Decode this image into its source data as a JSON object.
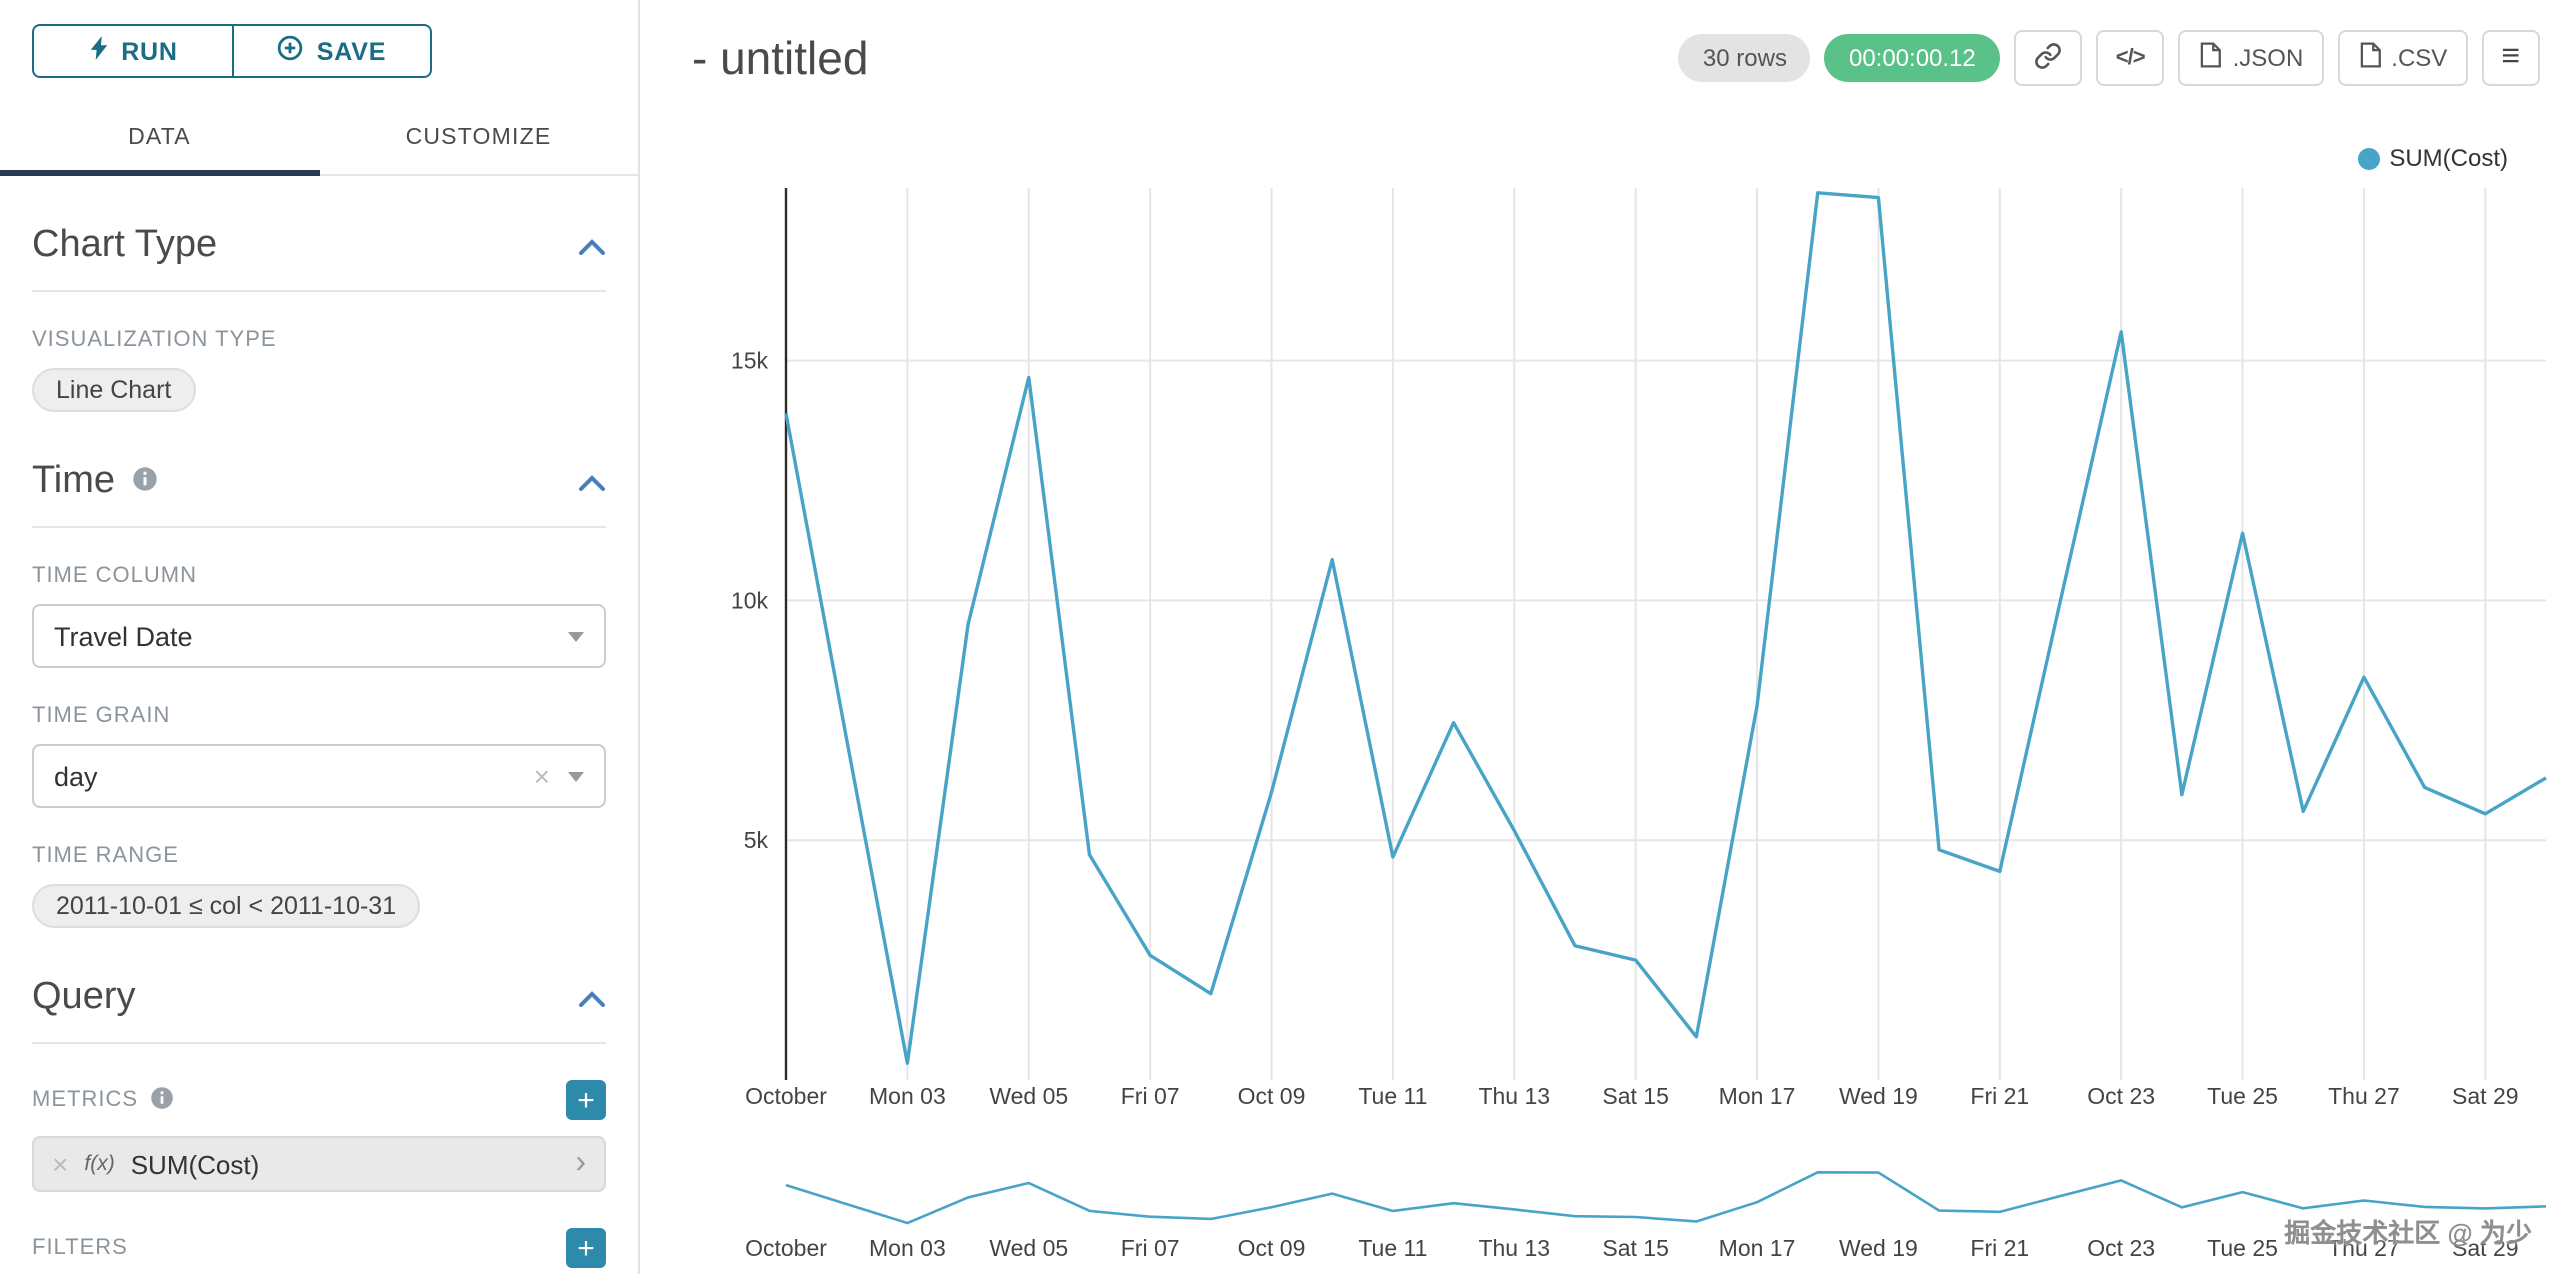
{
  "app": {
    "toolbar": {
      "run_label": "RUN",
      "save_label": "SAVE"
    },
    "tabs": {
      "data": "DATA",
      "customize": "CUSTOMIZE"
    },
    "sections": {
      "chart_type": {
        "title": "Chart Type",
        "viz_type_label": "VISUALIZATION TYPE",
        "viz_type_value": "Line Chart"
      },
      "time": {
        "title": "Time",
        "time_column_label": "TIME COLUMN",
        "time_column_value": "Travel Date",
        "time_grain_label": "TIME GRAIN",
        "time_grain_value": "day",
        "time_range_label": "TIME RANGE",
        "time_range_value": "2011-10-01 ≤ col < 2011-10-31"
      },
      "query": {
        "title": "Query",
        "metrics_label": "METRICS",
        "metric_fx": "f(x)",
        "metric_value": "SUM(Cost)",
        "filters_label": "FILTERS"
      }
    }
  },
  "header": {
    "title": "- untitled",
    "rows_badge": "30 rows",
    "timer_badge": "00:00:00.12",
    "json_label": ".JSON",
    "csv_label": ".CSV"
  },
  "legend": {
    "label": "SUM(Cost)"
  },
  "icons": {
    "clear": "×",
    "chevron_right": "›",
    "code": "</>",
    "menu": "≡"
  },
  "watermark": "掘金技术社区 @ 为少",
  "colors": {
    "line": "#48a4c6",
    "timer_green": "#5ac189",
    "accent": "#2e8aab",
    "run_save": "#1b6d85",
    "tab_underline": "#263b50",
    "chevron": "#4a7dbd",
    "grid": "#e6e6e6",
    "axis": "#2b2b2b"
  },
  "chart_data": {
    "type": "line",
    "title": "",
    "legend_position": "top-right",
    "grid": true,
    "x_unit": "day of October 2011",
    "x_days": 30,
    "series": [
      {
        "name": "SUM(Cost)",
        "values": [
          13900,
          7100,
          350,
          9500,
          14650,
          4700,
          2600,
          1800,
          6000,
          10850,
          4650,
          7450,
          5200,
          2800,
          2500,
          900,
          7800,
          18500,
          18400,
          4800,
          4350,
          10000,
          15600,
          5950,
          11400,
          5600,
          8400,
          6100,
          5550,
          6300
        ]
      }
    ],
    "x_tick_days": [
      1,
      3,
      5,
      7,
      9,
      11,
      13,
      15,
      17,
      19,
      21,
      23,
      25,
      27,
      29
    ],
    "x_tick_labels": [
      "October",
      "Mon 03",
      "Wed 05",
      "Fri 07",
      "Oct 09",
      "Tue 11",
      "Thu 13",
      "Sat 15",
      "Mon 17",
      "Wed 19",
      "Fri 21",
      "Oct 23",
      "Tue 25",
      "Thu 27",
      "Sat 29"
    ],
    "y_ticks": [
      5000,
      10000,
      15000
    ],
    "y_tick_labels": [
      "5k",
      "10k",
      "15k"
    ],
    "ylim": [
      0,
      18600
    ],
    "has_mini_chart": true
  }
}
